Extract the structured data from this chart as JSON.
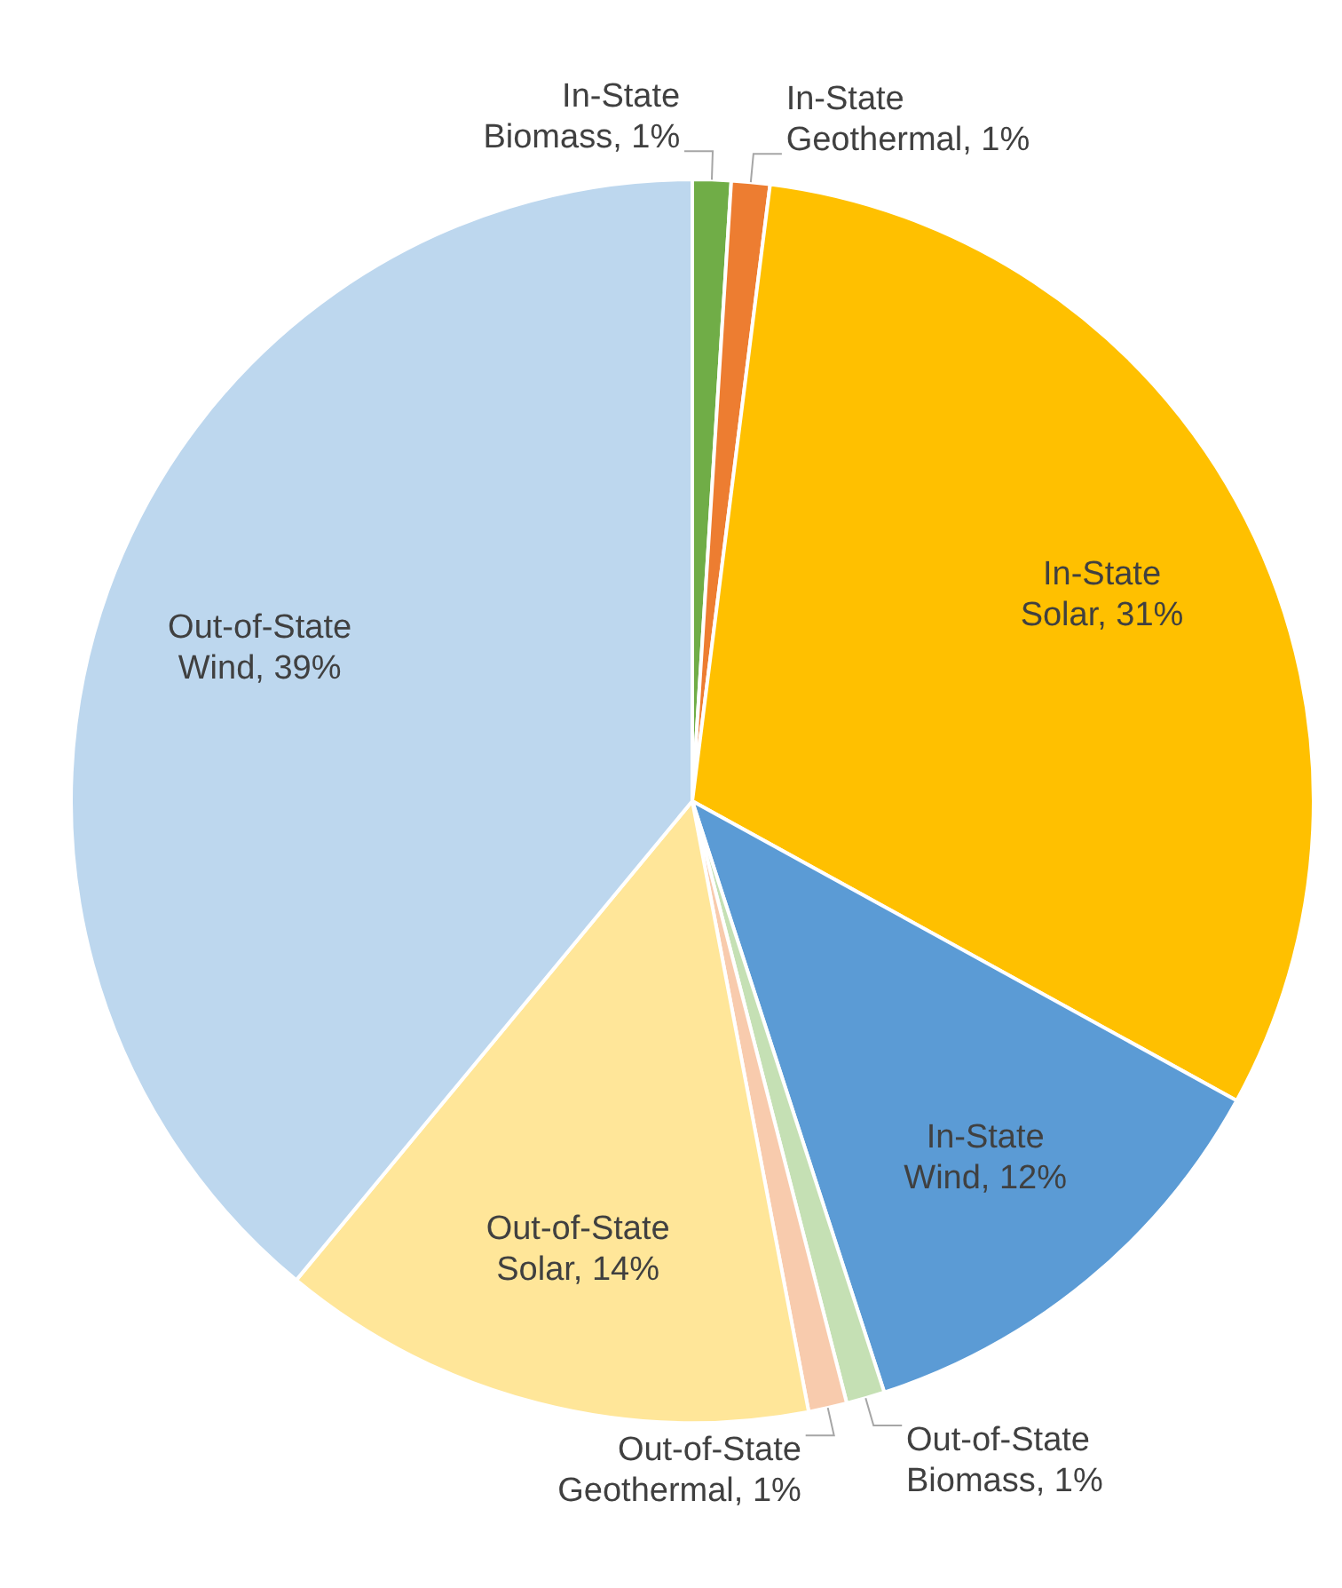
{
  "chart_data": {
    "type": "pie",
    "categories": [
      "In-State Biomass",
      "In-State Geothermal",
      "In-State Solar",
      "In-State Wind",
      "Out-of-State Biomass",
      "Out-of-State Geothermal",
      "Out-of-State Solar",
      "Out-of-State Wind"
    ],
    "values": [
      1,
      1,
      31,
      12,
      1,
      1,
      14,
      39
    ],
    "value_labels": [
      "1%",
      "1%",
      "31%",
      "12%",
      "1%",
      "1%",
      "14%",
      "39%"
    ],
    "colors": [
      "#70ad47",
      "#ed7d31",
      "#ffc000",
      "#5b9bd5",
      "#c5e0b4",
      "#f8cbad",
      "#ffe699",
      "#bdd7ee"
    ]
  }
}
